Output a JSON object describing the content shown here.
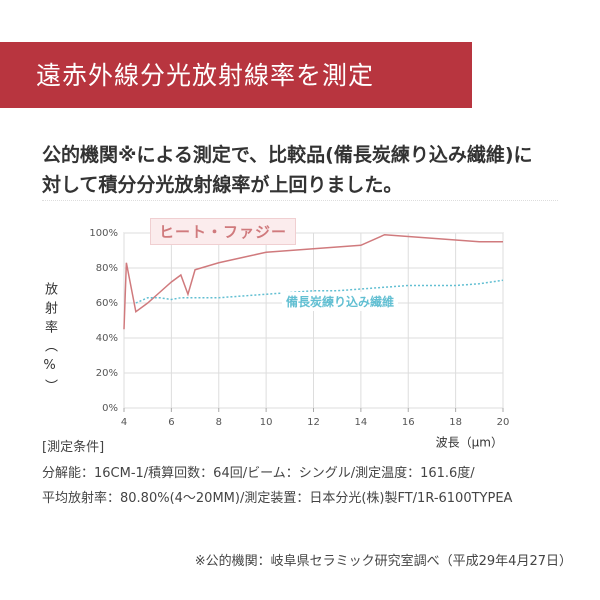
{
  "header": {
    "title": "遠赤外線分光放射線率を測定"
  },
  "intro": [
    "公的機関※による測定で、比較品(備長炭練り込み繊維)に",
    "対して積分分光放射線率が上回りました。"
  ],
  "chart_data": {
    "type": "line",
    "ylabel": "放射率（%）",
    "xlabel": "波長（μm）",
    "x": [
      4.0,
      4.1,
      4.5,
      5,
      5.5,
      6,
      6.4,
      6.7,
      7,
      8,
      9,
      10,
      11,
      12,
      13,
      14,
      15,
      16,
      17,
      18,
      19,
      20
    ],
    "series": [
      {
        "name": "ヒート・ファジー",
        "color": "#d07a7d",
        "values": [
          45,
          83,
          55,
          60,
          66,
          72,
          76,
          65,
          79,
          83,
          86,
          89,
          90,
          91,
          92,
          93,
          99,
          98,
          97,
          96,
          95,
          95
        ]
      },
      {
        "name": "備長炭練り込み繊維",
        "color": "#62bfd2",
        "values": [
          null,
          null,
          60,
          63,
          63,
          62,
          63,
          63,
          63,
          63,
          64,
          65,
          66,
          67,
          67,
          68,
          69,
          70,
          70,
          70,
          71,
          73
        ]
      }
    ],
    "xlim": [
      4,
      20
    ],
    "xticks": [
      4,
      6,
      8,
      10,
      12,
      14,
      16,
      18,
      20
    ],
    "ylim": [
      0,
      100
    ],
    "yticks": [
      {
        "value": 0,
        "label": "0%"
      },
      {
        "value": 20,
        "label": "20%"
      },
      {
        "value": 40,
        "label": "40%"
      },
      {
        "value": 60,
        "label": "60%"
      },
      {
        "value": 80,
        "label": "80%"
      },
      {
        "value": 100,
        "label": "100%"
      }
    ],
    "grid": true
  },
  "conditions": {
    "heading": "[測定条件]",
    "lines": [
      "分解能：16CM-1/積算回数：64回/ビーム：シングル/測定温度：161.6度/",
      "平均放射率：80.80%(4〜20MM)/測定装置：日本分光(株)製FT/1R-6100TYPEA"
    ]
  },
  "footnote": "※公的機関：岐阜県セラミック研究室調べ（平成29年4月27日）"
}
